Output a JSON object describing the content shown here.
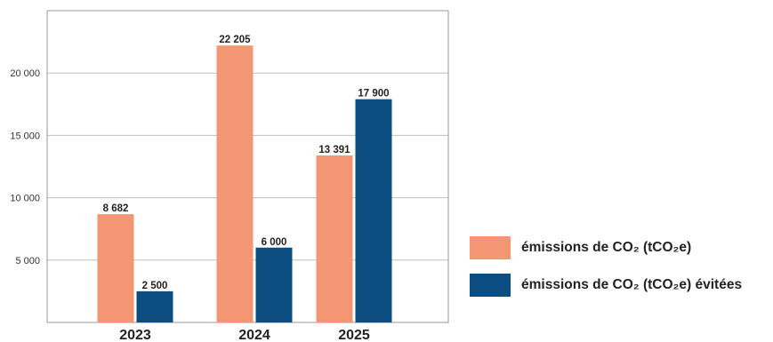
{
  "colors": {
    "emissions": "#f39673",
    "avoided": "#0b4d80",
    "grid": "#bfbfbf",
    "frame": "#9a9a9a"
  },
  "chart_data": {
    "type": "bar",
    "categories": [
      "2023",
      "2024",
      "2025"
    ],
    "series": [
      {
        "name": "émissions de CO₂ (tCO₂e)",
        "values": [
          8682,
          22205,
          13391
        ],
        "labels": [
          "8 682",
          "22 205",
          "13 391"
        ]
      },
      {
        "name": "émissions de CO₂ (tCO₂e) évitées",
        "values": [
          2500,
          6000,
          17900
        ],
        "labels": [
          "2 500",
          "6 000",
          "17 900"
        ]
      }
    ],
    "yticks": [
      5000,
      10000,
      15000,
      20000
    ],
    "ytick_labels": [
      "5 000",
      "10 000",
      "15 000",
      "20 000"
    ],
    "ylim": [
      0,
      25000
    ],
    "grid": true,
    "legend_position": "right",
    "title": "",
    "xlabel": "",
    "ylabel": ""
  }
}
